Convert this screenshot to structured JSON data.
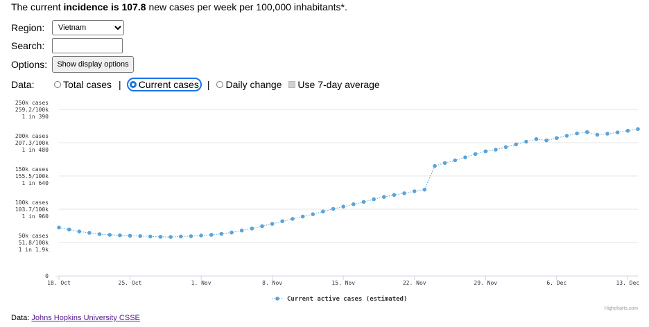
{
  "headline": {
    "prefix": "The current ",
    "bold": "incidence is 107.8",
    "suffix": " new cases per week per 100,000 inhabitants*."
  },
  "controls": {
    "region_label": "Region:",
    "region_value": "Vietnam",
    "search_label": "Search:",
    "search_value": "",
    "options_label": "Options:",
    "options_button": "Show display options",
    "data_label": "Data:",
    "data_options": [
      {
        "label": "Total cases",
        "selected": false
      },
      {
        "label": "Current cases",
        "selected": true
      },
      {
        "label": "Daily change",
        "selected": false
      }
    ],
    "separator": "|",
    "avg_label": "Use 7-day average",
    "accent_color": "#1a73e8"
  },
  "chart_data": {
    "type": "line",
    "series": [
      {
        "name": "Current active cases (estimated)",
        "color": "#5ba4d9",
        "x": [
          "2021-10-18",
          "2021-10-19",
          "2021-10-20",
          "2021-10-21",
          "2021-10-22",
          "2021-10-23",
          "2021-10-24",
          "2021-10-25",
          "2021-10-26",
          "2021-10-27",
          "2021-10-28",
          "2021-10-29",
          "2021-10-30",
          "2021-10-31",
          "2021-11-01",
          "2021-11-02",
          "2021-11-03",
          "2021-11-04",
          "2021-11-05",
          "2021-11-06",
          "2021-11-07",
          "2021-11-08",
          "2021-11-09",
          "2021-11-10",
          "2021-11-11",
          "2021-11-12",
          "2021-11-13",
          "2021-11-14",
          "2021-11-15",
          "2021-11-16",
          "2021-11-17",
          "2021-11-18",
          "2021-11-19",
          "2021-11-20",
          "2021-11-21",
          "2021-11-22",
          "2021-11-23",
          "2021-11-24",
          "2021-11-25",
          "2021-11-26",
          "2021-11-27",
          "2021-11-28",
          "2021-11-29",
          "2021-11-30",
          "2021-12-01",
          "2021-12-02",
          "2021-12-03",
          "2021-12-04",
          "2021-12-05",
          "2021-12-06",
          "2021-12-07",
          "2021-12-08",
          "2021-12-09",
          "2021-12-10",
          "2021-12-11",
          "2021-12-12",
          "2021-12-13",
          "2021-12-14"
        ],
        "y": [
          72500,
          69500,
          66500,
          64500,
          62500,
          61500,
          60800,
          60200,
          59600,
          59000,
          58500,
          58300,
          59000,
          59500,
          60500,
          61500,
          63000,
          65000,
          68000,
          71000,
          74500,
          78000,
          82000,
          85500,
          89000,
          92500,
          96500,
          100500,
          104000,
          107500,
          111000,
          115000,
          118500,
          121500,
          124000,
          127000,
          129500,
          165000,
          169500,
          173500,
          178000,
          183000,
          187000,
          189500,
          193500,
          197500,
          201500,
          205500,
          203500,
          207000,
          210500,
          214000,
          216000,
          212000,
          213500,
          215500,
          218000,
          220500
        ]
      }
    ],
    "x_tick_labels": [
      "18. Oct",
      "25. Oct",
      "1. Nov",
      "8. Nov",
      "15. Nov",
      "22. Nov",
      "29. Nov",
      "6. Dec",
      "13. Dec"
    ],
    "x_tick_dates": [
      "2021-10-18",
      "2021-10-25",
      "2021-11-01",
      "2021-11-08",
      "2021-11-15",
      "2021-11-22",
      "2021-11-29",
      "2021-12-06",
      "2021-12-13"
    ],
    "y_ticks": [
      {
        "value": 0,
        "lines": [
          "0"
        ]
      },
      {
        "value": 50000,
        "lines": [
          "50k cases",
          "51.8/100k",
          "1 in 1.9k"
        ]
      },
      {
        "value": 100000,
        "lines": [
          "100k cases",
          "103.7/100k",
          "1 in 960"
        ]
      },
      {
        "value": 150000,
        "lines": [
          "150k cases",
          "155.5/100k",
          "1 in 640"
        ]
      },
      {
        "value": 200000,
        "lines": [
          "200k cases",
          "207.3/100k",
          "1 in 480"
        ]
      },
      {
        "value": 250000,
        "lines": [
          "250k cases",
          "259.2/100k",
          "1 in 390"
        ]
      }
    ],
    "ylim": [
      0,
      250000
    ],
    "xlim": [
      "2021-10-18",
      "2021-12-14"
    ],
    "grid": true,
    "legend_position": "bottom-center",
    "credits": "Highcharts.com"
  },
  "footer": {
    "prefix": "Data: ",
    "link_text": "Johns Hopkins University CSSE"
  }
}
